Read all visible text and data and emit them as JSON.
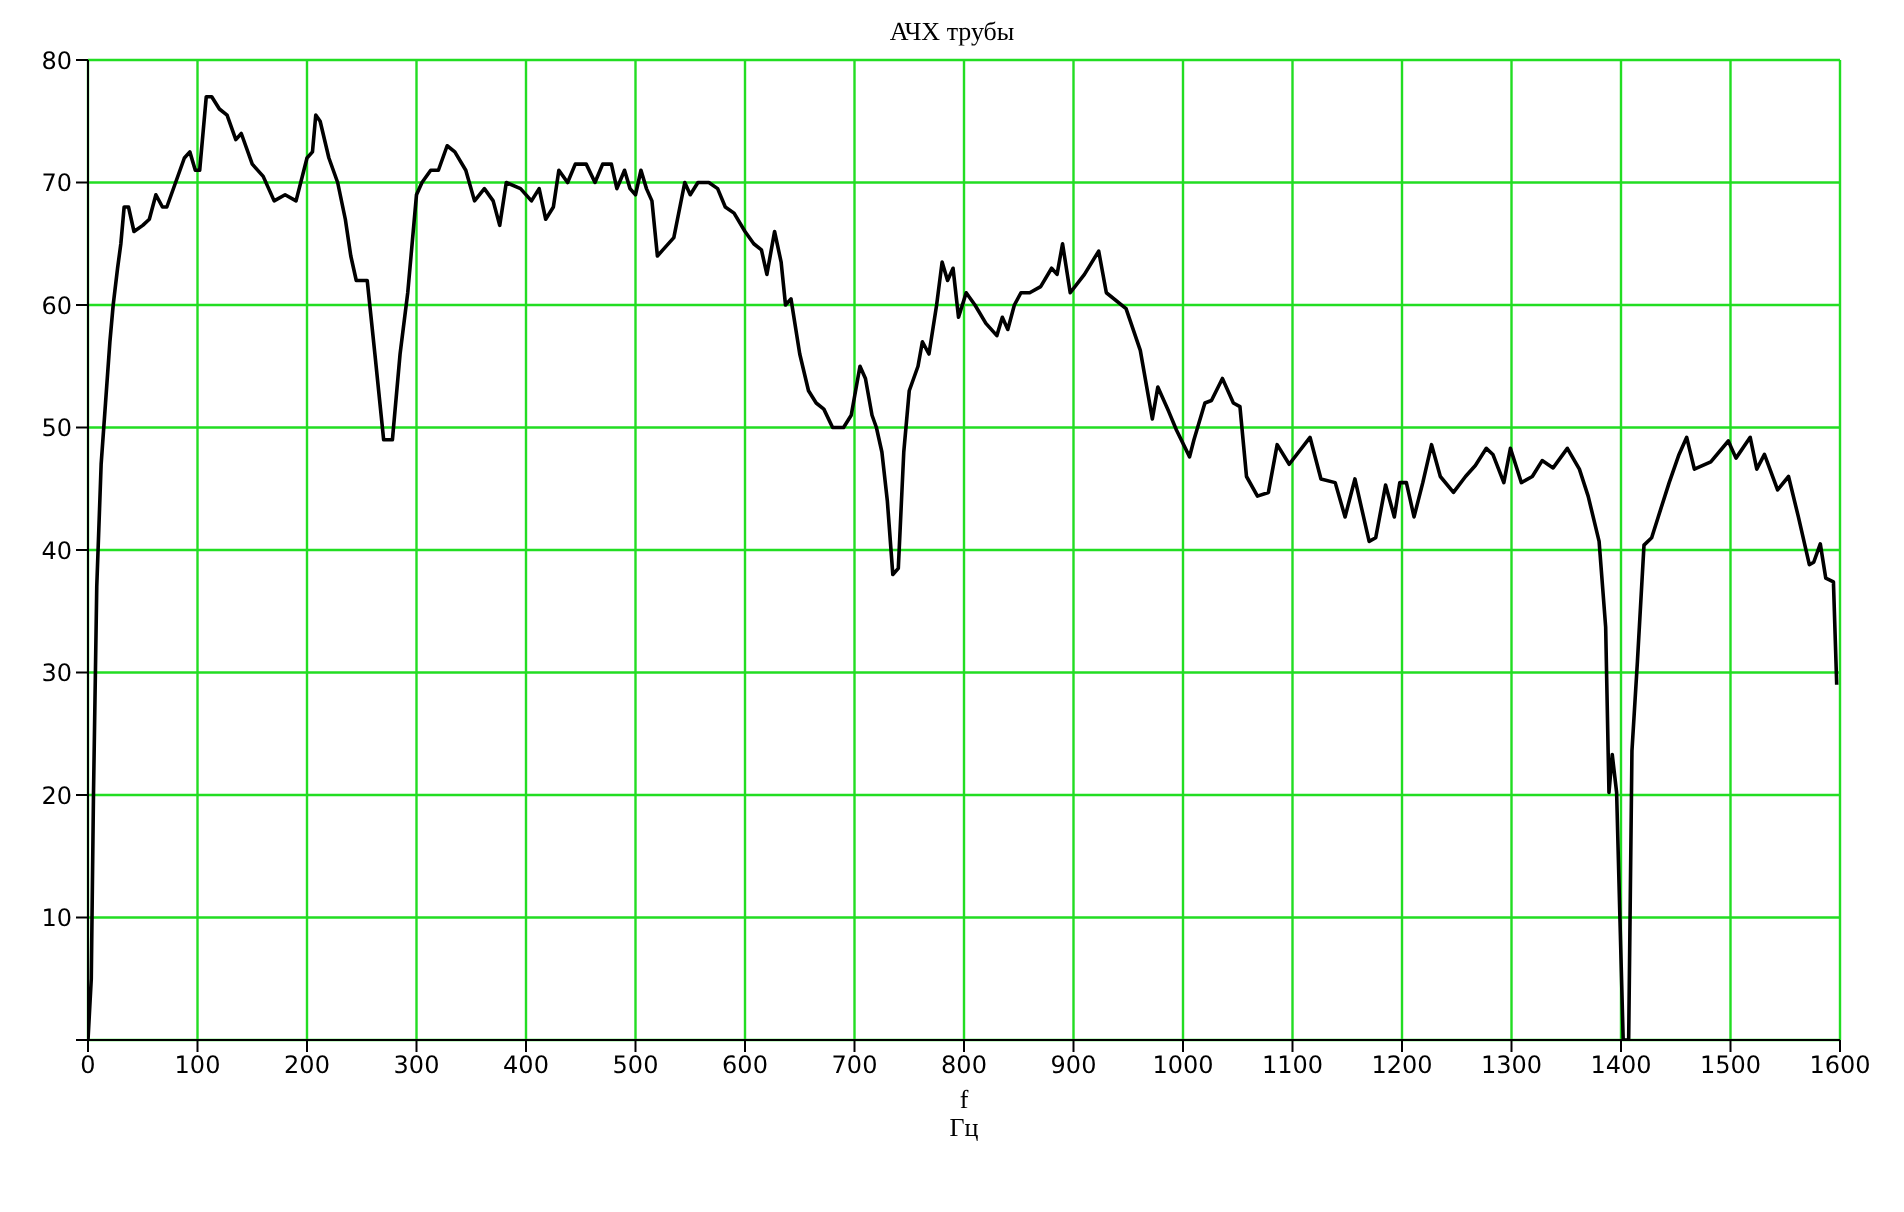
{
  "chart_data": {
    "type": "line",
    "title": "АЧХ трубы",
    "xlabel": "f\nГц",
    "xlim": [
      0,
      1600
    ],
    "xticks": [
      0,
      100,
      200,
      300,
      400,
      500,
      600,
      700,
      800,
      900,
      1000,
      1100,
      1200,
      1300,
      1400,
      1500,
      1600
    ],
    "ylim": [
      0,
      80
    ],
    "yticks": [
      {
        "value": 0,
        "label": null
      },
      10,
      20,
      30,
      40,
      50,
      60,
      70,
      80
    ],
    "grid": true,
    "legend": false,
    "marker": "none",
    "line_style": "solid",
    "series": [
      {
        "color": "#000000",
        "x": [
          0,
          3,
          5,
          8,
          12,
          16,
          20,
          23,
          27,
          30,
          33,
          37,
          42,
          50,
          56,
          62,
          68,
          72,
          80,
          88,
          93,
          98,
          102,
          108,
          113,
          120,
          127,
          135,
          140,
          150,
          160,
          170,
          180,
          190,
          200,
          205,
          208,
          212,
          220,
          228,
          235,
          240,
          245,
          250,
          255,
          262,
          270,
          278,
          285,
          292,
          300,
          305,
          313,
          320,
          328,
          335,
          345,
          353,
          362,
          370,
          376,
          382,
          395,
          405,
          412,
          418,
          425,
          430,
          438,
          445,
          455,
          463,
          470,
          478,
          483,
          490,
          495,
          500,
          505,
          510,
          515,
          520,
          525,
          535,
          545,
          550,
          557,
          567,
          575,
          582,
          590,
          600,
          608,
          615,
          620,
          627,
          633,
          637,
          642,
          650,
          658,
          665,
          672,
          680,
          690,
          697,
          705,
          710,
          716,
          720,
          725,
          730,
          735,
          740,
          745,
          750,
          758,
          762,
          768,
          775,
          780,
          785,
          790,
          795,
          802,
          810,
          820,
          830,
          835,
          840,
          846,
          852,
          860,
          870,
          880,
          885,
          890,
          897,
          910,
          923,
          930,
          948,
          961,
          972,
          977,
          987,
          994,
          1006,
          1010,
          1020,
          1026,
          1036,
          1046,
          1052,
          1058,
          1068,
          1078,
          1086,
          1097,
          1116,
          1126,
          1139,
          1148,
          1157,
          1170,
          1176,
          1185,
          1193,
          1198,
          1204,
          1211,
          1219,
          1227,
          1235,
          1247,
          1258,
          1267,
          1277,
          1283,
          1293,
          1299,
          1309,
          1319,
          1328,
          1338,
          1351,
          1362,
          1370,
          1380,
          1386,
          1389,
          1392,
          1396,
          1399,
          1402,
          1407,
          1410,
          1415,
          1421,
          1428,
          1434,
          1444,
          1453,
          1460,
          1467,
          1482,
          1498,
          1505,
          1518,
          1524,
          1531,
          1543,
          1553,
          1562,
          1572,
          1576,
          1582,
          1587,
          1594,
          1597
        ],
        "values": [
          0,
          5,
          20,
          37,
          47,
          52,
          57,
          60,
          63,
          65,
          68,
          68,
          66,
          66.5,
          67,
          69,
          68,
          68,
          70,
          72,
          72.5,
          71,
          71,
          77,
          77,
          76,
          75.5,
          73.5,
          74,
          71.5,
          70.5,
          68.5,
          69,
          68.5,
          72,
          72.5,
          75.5,
          75,
          72,
          70,
          67,
          64,
          62,
          62,
          62,
          56,
          49,
          49,
          56,
          61,
          69,
          70,
          71,
          71,
          73,
          72.5,
          71,
          68.5,
          69.5,
          68.5,
          66.5,
          70,
          69.5,
          68.5,
          69.5,
          67,
          68,
          71,
          70,
          71.5,
          71.5,
          70,
          71.5,
          71.5,
          69.5,
          71,
          69.5,
          69,
          71,
          69.5,
          68.5,
          64,
          64.5,
          65.5,
          70,
          69,
          70,
          70,
          69.5,
          68,
          67.5,
          66,
          65,
          64.5,
          62.5,
          66,
          63.5,
          60,
          60.5,
          56,
          53,
          52,
          51.5,
          50,
          50,
          51,
          55,
          54,
          51,
          50,
          48,
          44,
          38,
          38.5,
          48,
          53,
          55,
          57,
          56,
          60,
          63.5,
          62,
          63,
          59,
          61,
          60,
          58.5,
          57.5,
          59,
          58,
          60,
          61,
          61,
          61.5,
          63,
          62.5,
          65,
          61,
          62.5,
          64.4,
          61,
          59.7,
          56.3,
          50.7,
          53.3,
          51.3,
          49.8,
          47.6,
          49,
          52,
          52.2,
          54,
          52,
          51.7,
          46,
          44.4,
          44.7,
          48.6,
          47,
          49.2,
          45.8,
          45.5,
          42.7,
          45.8,
          40.7,
          41,
          45.3,
          42.7,
          45.5,
          45.5,
          42.7,
          45.5,
          48.6,
          46,
          44.7,
          46,
          46.9,
          48.3,
          47.8,
          45.5,
          48.3,
          45.5,
          46,
          47.3,
          46.7,
          48.3,
          46.6,
          44.4,
          40.7,
          33.7,
          20.2,
          23.3,
          20.2,
          10,
          0,
          0,
          23.6,
          30.9,
          40.4,
          41,
          42.7,
          45.5,
          47.8,
          49.2,
          46.6,
          47.2,
          48.9,
          47.5,
          49.2,
          46.6,
          47.8,
          44.9,
          46,
          42.7,
          38.8,
          39,
          40.5,
          37.7,
          37.4,
          29
        ]
      }
    ]
  }
}
